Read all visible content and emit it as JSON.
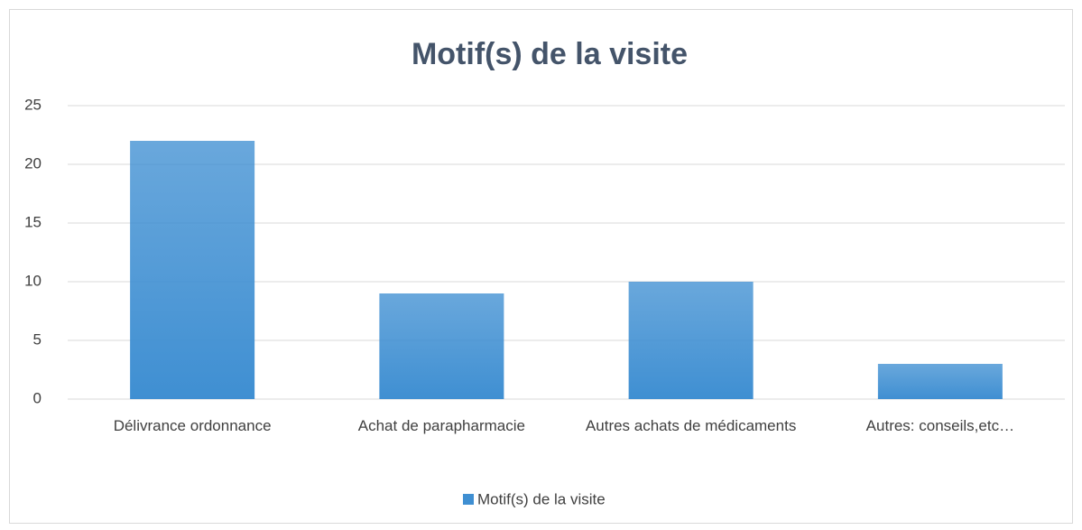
{
  "chart_data": {
    "type": "bar",
    "title": "Motif(s) de la visite",
    "categories": [
      "Délivrance ordonnance",
      "Achat de parapharmacie",
      "Autres achats de médicaments",
      "Autres: conseils,etc…"
    ],
    "series": [
      {
        "name": "Motif(s) de la visite",
        "color": "#3f8fd2",
        "values": [
          22,
          9,
          10,
          3
        ]
      }
    ],
    "ylim": [
      0,
      25
    ],
    "yticks": [
      0,
      5,
      10,
      15,
      20,
      25
    ],
    "grid": true,
    "legend": "bottom"
  }
}
